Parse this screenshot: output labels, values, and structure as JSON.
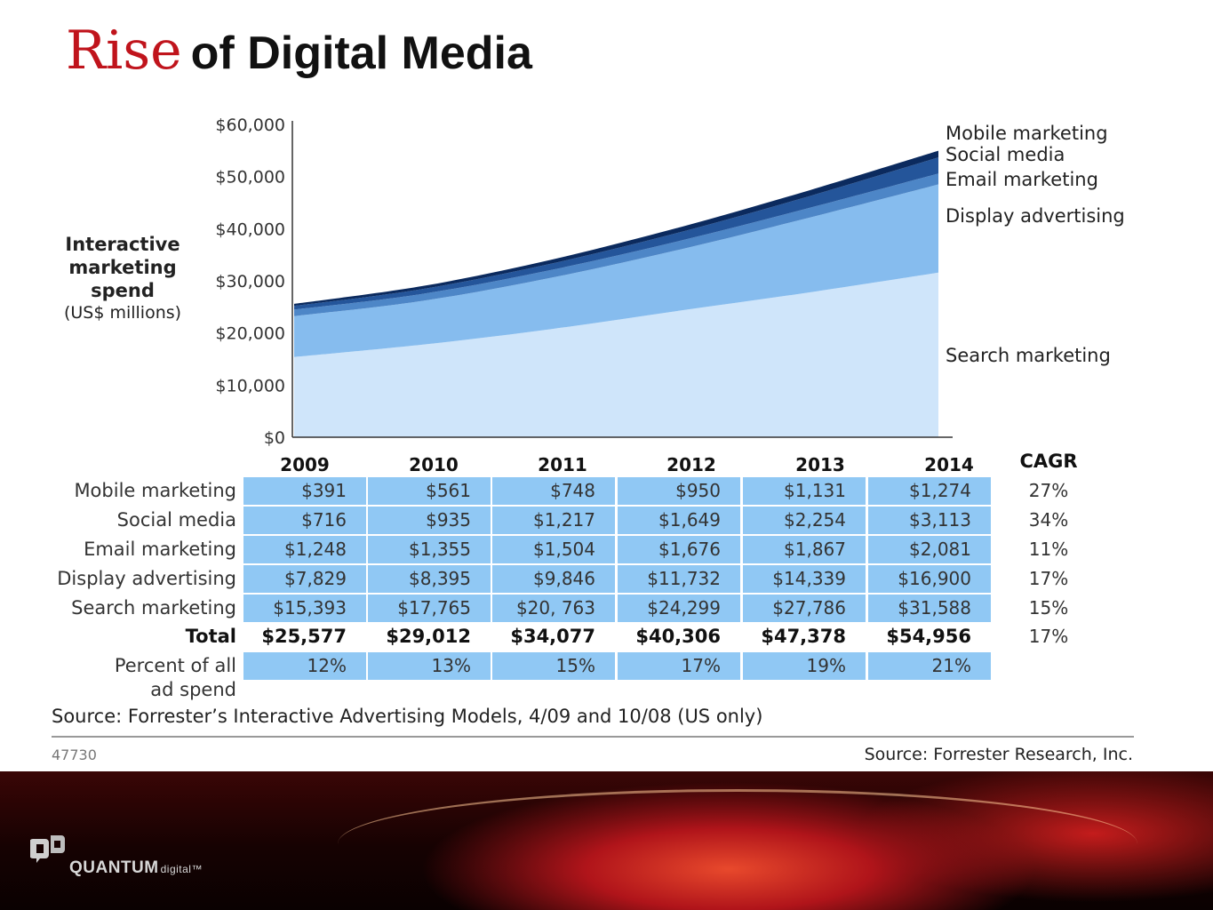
{
  "slide": {
    "title_emphasis": "Rise",
    "title_rest": "of Digital Media",
    "slide_number": "47730",
    "credit": "Source: Forrester Research, Inc.",
    "source_note": "Source: Forrester’s Interactive Advertising Models, 4/09 and 10/08 (US only)",
    "logo": {
      "brand": "QUANTUM",
      "suffix": "digital™",
      "icon": "quantum-qd-logo"
    }
  },
  "chart_data": {
    "type": "area",
    "stacked": true,
    "title": "",
    "ylabel_lines": [
      "Interactive",
      "marketing",
      "spend"
    ],
    "ylabel_unit": "(US$ millions)",
    "xlabel": "",
    "x": [
      "2009",
      "2010",
      "2011",
      "2012",
      "2013",
      "2014"
    ],
    "ylim": [
      0,
      60000
    ],
    "yticks": [
      "$0",
      "$10,000",
      "$20,000",
      "$30,000",
      "$40,000",
      "$50,000",
      "$60,000"
    ],
    "series": [
      {
        "name": "Search marketing",
        "values": [
          15393,
          17765,
          20763,
          24299,
          27786,
          31588
        ],
        "color": "#cfe5fa",
        "display": [
          "$15,393",
          "$17,765",
          "$20, 763",
          "$24,299",
          "$27,786",
          "$31,588"
        ],
        "cagr": "15%"
      },
      {
        "name": "Display advertising",
        "values": [
          7829,
          8395,
          9846,
          11732,
          14339,
          16900
        ],
        "color": "#86bcee",
        "display": [
          "$7,829",
          "$8,395",
          "$9,846",
          "$11,732",
          "$14,339",
          "$16,900"
        ],
        "cagr": "17%"
      },
      {
        "name": "Email marketing",
        "values": [
          1248,
          1355,
          1504,
          1676,
          1867,
          2081
        ],
        "color": "#4d86c7",
        "display": [
          "$1,248",
          "$1,355",
          "$1,504",
          "$1,676",
          "$1,867",
          "$2,081"
        ],
        "cagr": "11%"
      },
      {
        "name": "Social media",
        "values": [
          716,
          935,
          1217,
          1649,
          2254,
          3113
        ],
        "color": "#24559a",
        "display": [
          "$716",
          "$935",
          "$1,217",
          "$1,649",
          "$2,254",
          "$3,113"
        ],
        "cagr": "34%"
      },
      {
        "name": "Mobile marketing",
        "values": [
          391,
          561,
          748,
          950,
          1131,
          1274
        ],
        "color": "#0b2a5e",
        "display": [
          "$391",
          "$561",
          "$748",
          "$950",
          "$1,131",
          "$1,274"
        ],
        "cagr": "27%"
      }
    ],
    "table": {
      "cagr_header": "CAGR",
      "row_order": [
        "Mobile marketing",
        "Social media",
        "Email marketing",
        "Display advertising",
        "Search marketing"
      ],
      "total": {
        "label": "Total",
        "values": [
          "$25,577",
          "$29,012",
          "$34,077",
          "$40,306",
          "$47,378",
          "$54,956"
        ],
        "cagr": "17%"
      },
      "percent": {
        "label_lines": [
          "Percent of all",
          "ad spend"
        ],
        "values": [
          "12%",
          "13%",
          "15%",
          "17%",
          "19%",
          "21%"
        ]
      }
    }
  }
}
